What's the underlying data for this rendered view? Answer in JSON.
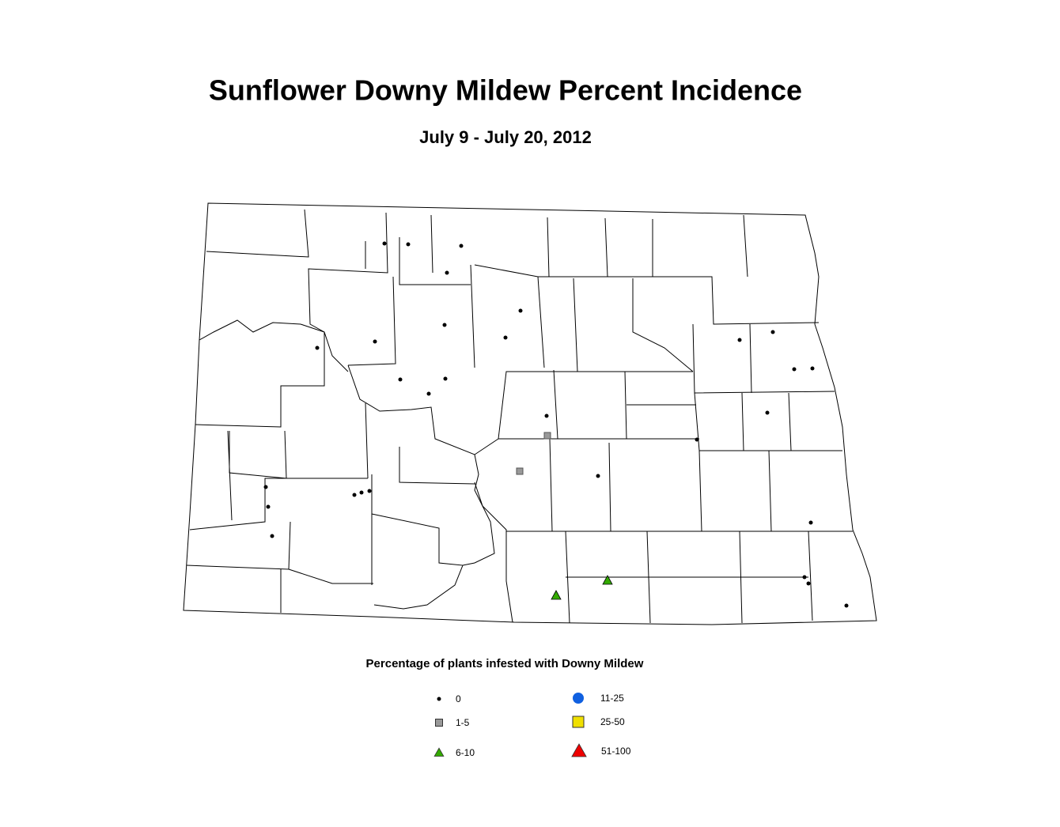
{
  "header": {
    "title": "Sunflower Downy Mildew Percent Incidence",
    "subtitle": "July 9 - July 20, 2012"
  },
  "legend": {
    "title": "Percentage of plants infested with Downy Mildew",
    "items": [
      {
        "label": "0",
        "symbol": "dot",
        "color": "#000000"
      },
      {
        "label": "1-5",
        "symbol": "square",
        "color": "#999999"
      },
      {
        "label": "6-10",
        "symbol": "triangle",
        "color": "#33aa00"
      },
      {
        "label": "11-25",
        "symbol": "circle",
        "color": "#1060e0"
      },
      {
        "label": "25-50",
        "symbol": "square",
        "color": "#f0e000"
      },
      {
        "label": "51-100",
        "symbol": "triangle",
        "color": "#ee0000"
      }
    ]
  }
}
